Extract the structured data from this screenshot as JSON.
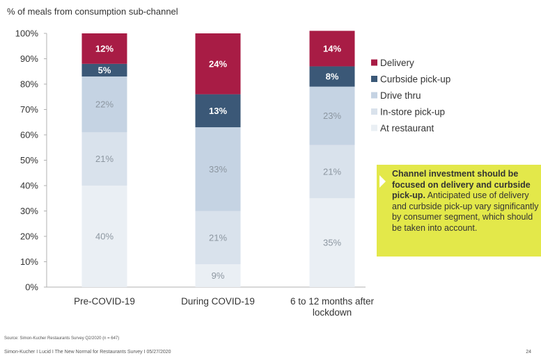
{
  "subtitle": "% of meals from consumption sub-channel",
  "colors": {
    "delivery": "#a81c45",
    "curbside": "#3b5877",
    "drive_thru": "#c5d3e3",
    "in_store": "#d9e2ec",
    "at_restaurant": "#eaeff4",
    "callout_bg": "#e3e84a"
  },
  "chart_data": {
    "type": "bar",
    "stacked": true,
    "categories": [
      "Pre-COVID-19",
      "During COVID-19",
      "6 to 12 months after lockdown"
    ],
    "category_lines": [
      [
        "Pre-COVID-19"
      ],
      [
        "During COVID-19"
      ],
      [
        "6 to 12 months after",
        "lockdown"
      ]
    ],
    "series": [
      {
        "name": "At restaurant",
        "key": "at_restaurant",
        "values": [
          40,
          9,
          35
        ],
        "labels": [
          "40%",
          "9%",
          "35%"
        ]
      },
      {
        "name": "In-store pick-up",
        "key": "in_store",
        "values": [
          21,
          21,
          21
        ],
        "labels": [
          "21%",
          "21%",
          "21%"
        ]
      },
      {
        "name": "Drive thru",
        "key": "drive_thru",
        "values": [
          22,
          33,
          23
        ],
        "labels": [
          "22%",
          "33%",
          "23%"
        ]
      },
      {
        "name": "Curbside pick-up",
        "key": "curbside",
        "values": [
          5,
          13,
          8
        ],
        "labels": [
          "5%",
          "13%",
          "8%"
        ]
      },
      {
        "name": "Delivery",
        "key": "delivery",
        "values": [
          12,
          24,
          14
        ],
        "labels": [
          "12%",
          "24%",
          "14%"
        ]
      }
    ],
    "legend_order": [
      "delivery",
      "curbside",
      "drive_thru",
      "in_store",
      "at_restaurant"
    ],
    "yticks": [
      "0%",
      "10%",
      "20%",
      "30%",
      "40%",
      "50%",
      "60%",
      "70%",
      "80%",
      "90%",
      "100%"
    ],
    "ylim": [
      0,
      100
    ],
    "legend_position": "right",
    "grid": false
  },
  "callout": {
    "bold": "Channel investment should be focused on delivery and curbside pick-up.",
    "text": " Anticipated use of delivery and curbside pick-up vary significantly by consumer segment, which should be taken into account."
  },
  "source": "Source: Simon-Kucher Restaurants Survey Q2/2020 (n = 647)",
  "footer": "Simon-Kucher I Lucid I The New Normal for Restaurants Survey I 05/27/2020",
  "page_number": "24"
}
